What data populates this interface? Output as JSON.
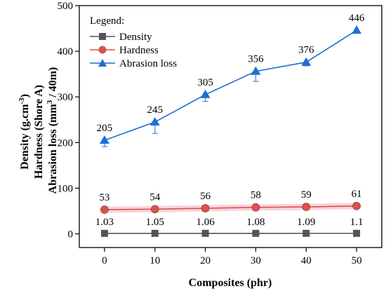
{
  "chart_data": {
    "type": "line",
    "title": "",
    "xlabel": "Composites (phr)",
    "ylabel_lines": [
      "Density (g.cm",
      "-3",
      ")",
      "Hardness (Shore A)",
      "Abrasion loss (mm",
      "3",
      " / 40m)"
    ],
    "x": [
      0,
      10,
      20,
      30,
      40,
      50
    ],
    "x_ticks": [
      "0",
      "10",
      "20",
      "30",
      "40",
      "50"
    ],
    "xlim": [
      -5,
      55
    ],
    "y_ticks": [
      "0",
      "100",
      "200",
      "300",
      "400",
      "500"
    ],
    "ylim": [
      -30,
      500
    ],
    "grid": false,
    "legend": {
      "title": "Legend:",
      "placement": "top-left"
    },
    "series": [
      {
        "name": "Density",
        "color": "#555555",
        "marker": "square",
        "values": [
          1.03,
          1.05,
          1.06,
          1.08,
          1.09,
          1.1
        ],
        "labels": [
          "1.03",
          "1.05",
          "1.06",
          "1.08",
          "1.09",
          "1.1"
        ]
      },
      {
        "name": "Hardness",
        "color": "#d9534f",
        "marker": "circle",
        "values": [
          53,
          54,
          56,
          58,
          59,
          61
        ],
        "labels": [
          "53",
          "54",
          "56",
          "58",
          "59",
          "61"
        ]
      },
      {
        "name": "Abrasion loss",
        "color": "#1f6fd1",
        "marker": "triangle",
        "values": [
          205,
          245,
          305,
          356,
          376,
          446
        ],
        "labels": [
          "205",
          "245",
          "305",
          "356",
          "376",
          "446"
        ],
        "errors": [
          14,
          25,
          15,
          22,
          8,
          5
        ]
      }
    ]
  }
}
